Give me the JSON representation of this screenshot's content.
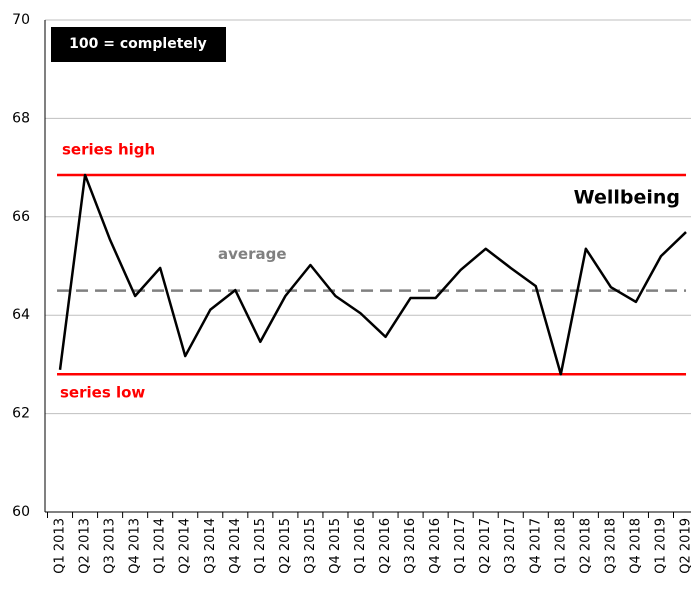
{
  "chart_data": {
    "type": "line",
    "categories": [
      "Q1 2013",
      "Q2 2013",
      "Q3 2013",
      "Q4 2013",
      "Q1 2014",
      "Q2 2014",
      "Q3 2014",
      "Q4 2014",
      "Q1 2015",
      "Q2 2015",
      "Q3 2015",
      "Q4 2015",
      "Q1 2016",
      "Q2 2016",
      "Q3 2016",
      "Q4 2016",
      "Q1 2017",
      "Q2 2017",
      "Q3 2017",
      "Q4 2017",
      "Q1 2018",
      "Q2 2018",
      "Q3 2018",
      "Q4 2018",
      "Q1 2019",
      "Q2 2019"
    ],
    "series": [
      {
        "name": "Wellbeing",
        "color": "#000000",
        "values": [
          62.89,
          66.85,
          65.53,
          64.39,
          64.96,
          63.17,
          64.11,
          64.51,
          63.46,
          64.39,
          65.02,
          64.39,
          64.04,
          63.56,
          64.35,
          64.35,
          64.92,
          65.35,
          64.96,
          64.59,
          62.8,
          65.35,
          64.57,
          64.27,
          65.2,
          65.69
        ]
      }
    ],
    "reference_lines": [
      {
        "label": "series high",
        "value": 66.85,
        "color": "#ff0000",
        "dashed": false
      },
      {
        "label": "series low",
        "value": 62.8,
        "color": "#ff0000",
        "dashed": false
      },
      {
        "label": "average",
        "value": 64.5,
        "color": "#808080",
        "dashed": true
      }
    ],
    "annotation": "100 = completely",
    "ylim": [
      60,
      70
    ],
    "yticks": [
      60,
      62,
      64,
      66,
      68,
      70
    ],
    "grid": true
  }
}
